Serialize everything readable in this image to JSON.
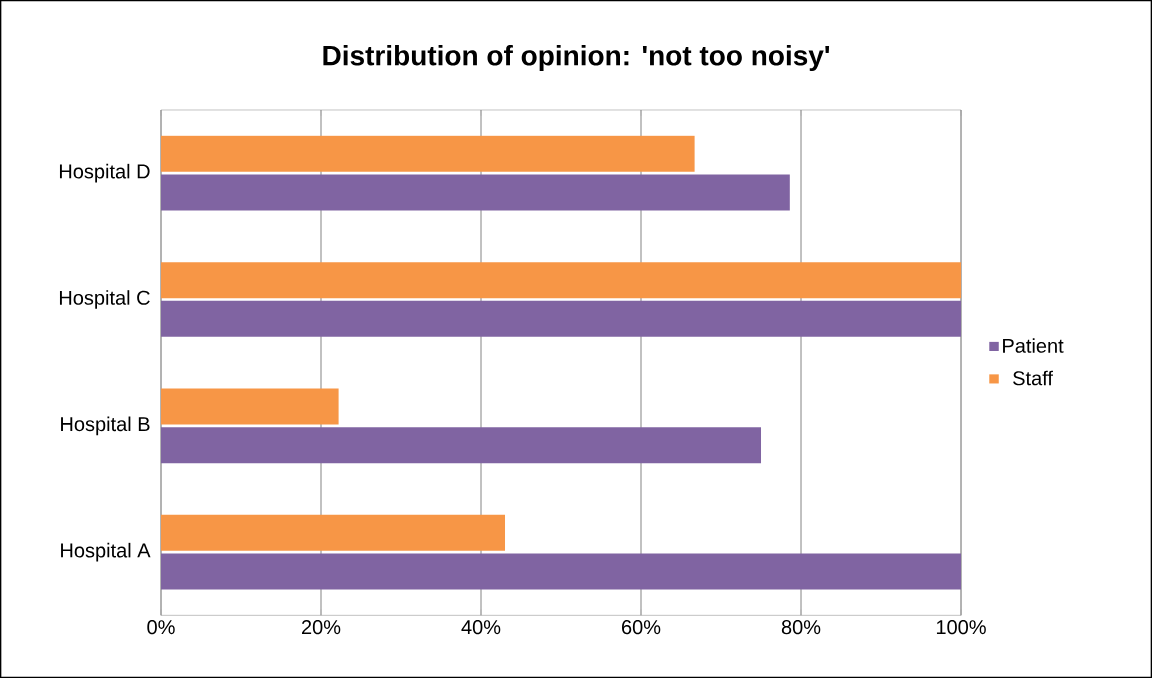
{
  "chart_data": {
    "type": "bar",
    "orientation": "horizontal",
    "title": "Distribution of opinion: 'not too noisy'",
    "categories": [
      "Hospital D",
      "Hospital C",
      "Hospital B",
      "Hospital A"
    ],
    "series": [
      {
        "name": "Patient",
        "color": "#8064a2",
        "values": [
          78.6,
          100,
          75,
          100
        ]
      },
      {
        "name": "Staff",
        "color": "#f79646",
        "values": [
          66.7,
          100,
          22.2,
          43
        ]
      }
    ],
    "xlim": [
      0,
      100
    ],
    "xticks": [
      {
        "value": 0,
        "label": "0%"
      },
      {
        "value": 20,
        "label": "20%"
      },
      {
        "value": 40,
        "label": "40%"
      },
      {
        "value": 60,
        "label": "60%"
      },
      {
        "value": 80,
        "label": "80%"
      },
      {
        "value": 100,
        "label": "100%"
      }
    ],
    "grid": "x",
    "legend": "right"
  }
}
